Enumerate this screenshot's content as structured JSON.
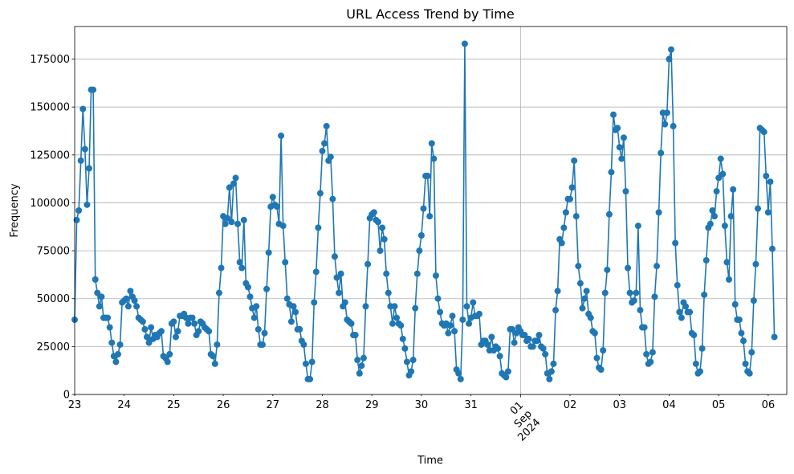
{
  "chart_data": {
    "type": "line",
    "title": "URL Access Trend by Time",
    "xlabel": "Time",
    "ylabel": "Frequency",
    "ylim": [
      0,
      192000
    ],
    "y_ticks": [
      0,
      25000,
      50000,
      75000,
      100000,
      125000,
      150000,
      175000
    ],
    "grid": true,
    "marker": "circle",
    "color": "#1f77b4",
    "x_ticks": [
      {
        "label": "23",
        "t": 0
      },
      {
        "label": "24",
        "t": 24
      },
      {
        "label": "25",
        "t": 48
      },
      {
        "label": "26",
        "t": 72
      },
      {
        "label": "27",
        "t": 96
      },
      {
        "label": "28",
        "t": 120
      },
      {
        "label": "29",
        "t": 144
      },
      {
        "label": "30",
        "t": 168
      },
      {
        "label": "31",
        "t": 192
      },
      {
        "label": "01\nSep\n2024",
        "t": 216,
        "rotated": true
      },
      {
        "label": "02",
        "t": 240
      },
      {
        "label": "03",
        "t": 264
      },
      {
        "label": "04",
        "t": 288
      },
      {
        "label": "05",
        "t": 312
      },
      {
        "label": "06",
        "t": 336
      }
    ],
    "x_major_tick_index": 9,
    "xlim_hours": [
      0,
      345
    ],
    "values": [
      39000,
      91000,
      96000,
      122000,
      149000,
      128000,
      99000,
      118000,
      159000,
      159000,
      60000,
      53000,
      46000,
      51000,
      40000,
      40000,
      40000,
      35000,
      27000,
      20000,
      17000,
      21000,
      26000,
      48000,
      49000,
      50000,
      46000,
      54000,
      51000,
      49000,
      46000,
      40000,
      39000,
      38000,
      34000,
      30000,
      27000,
      35000,
      29000,
      31000,
      30000,
      32000,
      33000,
      20000,
      19000,
      17000,
      21000,
      37000,
      38000,
      30000,
      33000,
      41000,
      41000,
      42000,
      40000,
      37000,
      40000,
      40000,
      37000,
      31000,
      33000,
      38000,
      37000,
      35000,
      34000,
      33000,
      21000,
      20000,
      16000,
      26000,
      53000,
      66000,
      93000,
      89000,
      92000,
      108000,
      90000,
      110000,
      113000,
      89000,
      69000,
      66000,
      91000,
      58000,
      56000,
      51000,
      45000,
      40000,
      46000,
      34000,
      26000,
      26000,
      32000,
      55000,
      74000,
      98000,
      103000,
      99000,
      98000,
      89000,
      135000,
      88000,
      69000,
      50000,
      47000,
      38000,
      46000,
      43000,
      34000,
      34000,
      28000,
      26000,
      16000,
      8000,
      8000,
      17000,
      48000,
      64000,
      87000,
      105000,
      127000,
      131000,
      140000,
      122000,
      124000,
      102000,
      72000,
      61000,
      53000,
      63000,
      46000,
      48000,
      39000,
      38000,
      37000,
      31000,
      31000,
      18000,
      11000,
      15000,
      19000,
      46000,
      68000,
      92000,
      94000,
      95000,
      91000,
      90000,
      75000,
      87000,
      81000,
      63000,
      53000,
      46000,
      37000,
      46000,
      40000,
      37000,
      36000,
      29000,
      24000,
      17000,
      10000,
      12000,
      18000,
      45000,
      63000,
      75000,
      83000,
      97000,
      114000,
      114000,
      93000,
      131000,
      123000,
      62000,
      50000,
      43000,
      37000,
      36000,
      37000,
      32000,
      36000,
      41000,
      33000,
      13000,
      11000,
      8000,
      39000,
      183000,
      46000,
      37000,
      40000,
      48000,
      41000,
      41000,
      42000,
      26000,
      28000,
      28000,
      26000,
      23000,
      30000,
      23000,
      25000,
      24000,
      20000,
      11000,
      10000,
      9000,
      12000,
      34000,
      34000,
      27000,
      32000,
      35000,
      33000,
      31000,
      31000,
      28000,
      29000,
      25000,
      25000,
      28000,
      28000,
      31000,
      25000,
      24000,
      21000,
      11000,
      8000,
      12000,
      16000,
      44000,
      54000,
      81000,
      79000,
      87000,
      95000,
      102000,
      102000,
      108000,
      122000,
      93000,
      67000,
      58000,
      45000,
      50000,
      54000,
      42000,
      40000,
      33000,
      32000,
      19000,
      14000,
      13000,
      23000,
      53000,
      65000,
      94000,
      116000,
      146000,
      138000,
      139000,
      129000,
      123000,
      134000,
      106000,
      66000,
      53000,
      48000,
      49000,
      53000,
      88000,
      44000,
      35000,
      35000,
      21000,
      16000,
      17000,
      22000,
      51000,
      67000,
      95000,
      126000,
      147000,
      141000,
      147000,
      175000,
      180000,
      140000,
      79000,
      57000,
      43000,
      40000,
      48000,
      46000,
      43000,
      43000,
      32000,
      31000,
      16000,
      11000,
      12000,
      24000,
      52000,
      70000,
      87000,
      89000,
      96000,
      93000,
      106000,
      113000,
      123000,
      115000,
      88000,
      69000,
      60000,
      93000,
      107000,
      47000,
      39000,
      39000,
      32000,
      28000,
      16000,
      12000,
      11000,
      22000,
      49000,
      68000,
      97000,
      139000,
      138000,
      137000,
      114000,
      95000,
      111000,
      76000,
      30000
    ]
  }
}
